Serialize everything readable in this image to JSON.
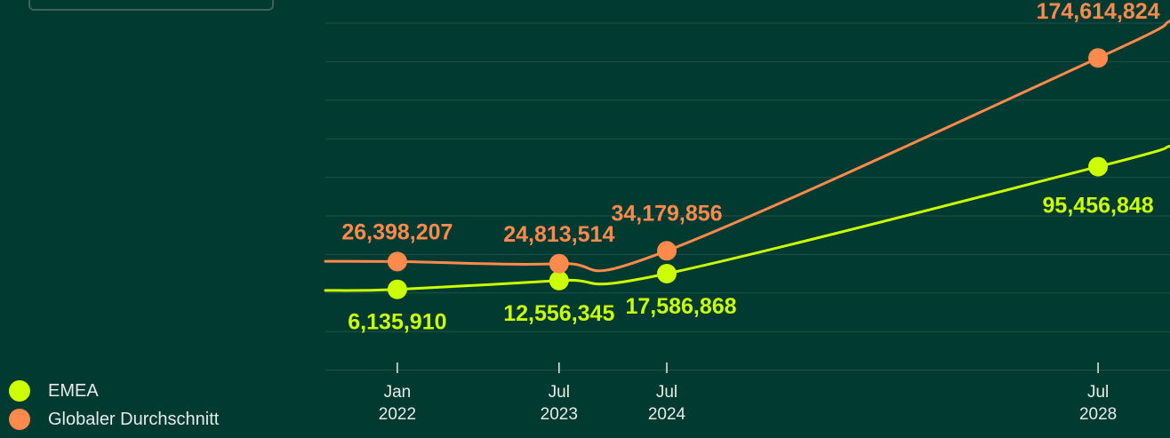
{
  "chart_data": {
    "type": "line",
    "x": [
      "2022-01",
      "2023-07",
      "2024-07",
      "2028-07"
    ],
    "xlim": [
      "2021-05",
      "2029-03"
    ],
    "x_ticks": [
      {
        "x": "2022-01",
        "month": "Jan",
        "year": "2022"
      },
      {
        "x": "2023-07",
        "month": "Jul",
        "year": "2023"
      },
      {
        "x": "2024-07",
        "month": "Jul",
        "year": "2024"
      },
      {
        "x": "2028-07",
        "month": "Jul",
        "year": "2028"
      }
    ],
    "ylim": [
      -40000000,
      200000000
    ],
    "grid": true,
    "legend_position": "bottom-left",
    "series": [
      {
        "name": "EMEA",
        "color": "#ccff00",
        "values": [
          6135910,
          12556345,
          17586868,
          95456848
        ],
        "labels": [
          "6,135,910",
          "12,556,345",
          "17,586,868",
          "95,456,848"
        ]
      },
      {
        "name": "Globaler Durchschnitt",
        "color": "#ff8a4c",
        "values": [
          26398207,
          24813514,
          34179856,
          174614824
        ],
        "labels": [
          "26,398,207",
          "24,813,514",
          "34,179,856",
          "174,614,824"
        ]
      }
    ]
  },
  "colors": {
    "background": "#003a31",
    "grid": "#1f5247",
    "text": "#e6ece9"
  }
}
